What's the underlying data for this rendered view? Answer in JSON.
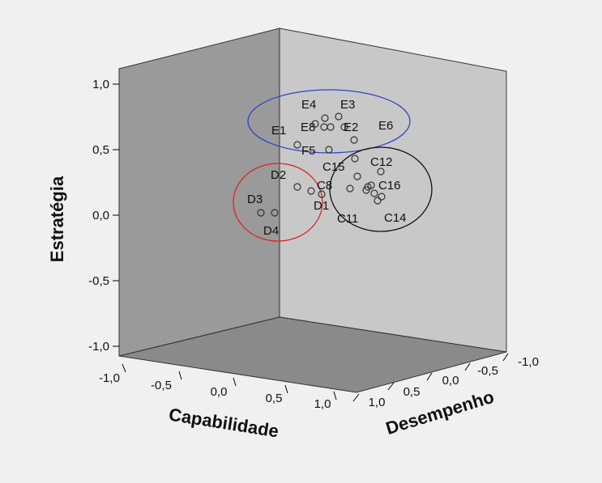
{
  "chart_data": {
    "type": "scatter",
    "projection": "3d",
    "axes": {
      "z": {
        "label": "Estratégia",
        "ticks": [
          "-1,0",
          "-0,5",
          "0,0",
          "0,5",
          "1,0"
        ],
        "range": [
          -1,
          1
        ]
      },
      "x": {
        "label": "Capabilidade",
        "ticks": [
          "-1,0",
          "-0,5",
          "0,0",
          "0,5",
          "1,0"
        ],
        "range": [
          -1,
          1
        ]
      },
      "y": {
        "label": "Desempenho",
        "ticks": [
          "1,0",
          "0,5",
          "0,0",
          "-0,5",
          "-1,0"
        ],
        "range": [
          -1,
          1
        ]
      }
    },
    "points": [
      {
        "label": "E4"
      },
      {
        "label": "E3"
      },
      {
        "label": "E8"
      },
      {
        "label": "E2"
      },
      {
        "label": "E6"
      },
      {
        "label": "E1"
      },
      {
        "label": "F5"
      },
      {
        "label": "C12"
      },
      {
        "label": "C15"
      },
      {
        "label": "D2"
      },
      {
        "label": "C8"
      },
      {
        "label": "C16"
      },
      {
        "label": "D3"
      },
      {
        "label": "D1"
      },
      {
        "label": "C11"
      },
      {
        "label": "C14"
      },
      {
        "label": "D4"
      }
    ],
    "groups": [
      {
        "color": "#3344cc",
        "members": [
          "E1",
          "E2",
          "E3",
          "E4",
          "E6",
          "E8",
          "F5"
        ]
      },
      {
        "color": "#e02020",
        "members": [
          "D1",
          "D2",
          "D3",
          "D4"
        ]
      },
      {
        "color": "#111111",
        "members": [
          "C8",
          "C11",
          "C12",
          "C14",
          "C15",
          "C16"
        ]
      }
    ],
    "colors": {
      "back_wall": "#c8c8c8",
      "left_wall": "#9a9a9a",
      "floor": "#8a8a8a",
      "markers": "#333333"
    }
  }
}
